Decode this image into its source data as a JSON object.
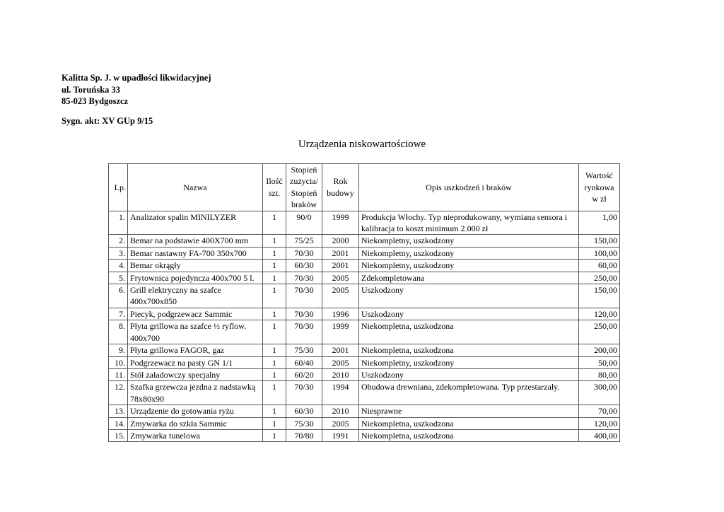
{
  "header": {
    "company": "Kalitta Sp. J. w upadłości likwidacyjnej",
    "street": "ul. Toruńska 33",
    "city": "85-023 Bydgoszcz",
    "case_ref": "Sygn. akt: XV GUp 9/15"
  },
  "title": "Urządzenia niskowartościowe",
  "table": {
    "columns": [
      "Lp.",
      "Nazwa",
      "Ilość szt.",
      "Stopień zużycia/ Stopień braków",
      "Rok budowy",
      "Opis uszkodzeń i braków",
      "Wartość rynkowa w zł"
    ],
    "rows": [
      [
        "1.",
        "Analizator spalin MINILYZER",
        "1",
        "90/0",
        "1999",
        "Produkcja Włochy. Typ nieprodukowany, wymiana sensora i kalibracja to koszt minimum 2.000 zł",
        "1,00"
      ],
      [
        "2.",
        "Bemar na podstawie 400X700 mm",
        "1",
        "75/25",
        "2000",
        "Niekompletny, uszkodzony",
        "150,00"
      ],
      [
        "3.",
        "Bemar nastawny FA-700 350x700",
        "1",
        "70/30",
        "2001",
        "Niekompletny, uszkodzony",
        "100,00"
      ],
      [
        "4.",
        "Bemar okrągły",
        "1",
        "60/30",
        "2001",
        "Niekompletny, uszkodzony",
        "60,00"
      ],
      [
        "5.",
        "Frytownica pojedyncza 400x700 5 l.",
        "1",
        "70/30",
        "2005",
        "Zdekompletowana",
        "250,00"
      ],
      [
        "6.",
        "Grill elektryczny na szafce 400x700x850",
        "1",
        "70/30",
        "2005",
        "Uszkodzony",
        "150,00"
      ],
      [
        "7.",
        "Piecyk, podgrzewacz Sammic",
        "1",
        "70/30",
        "1996",
        "Uszkodzony",
        "120,00"
      ],
      [
        "8.",
        "Płyta grillowa na szafce ½ ryflow. 400x700",
        "1",
        "70/30",
        "1999",
        "Niekompletna, uszkodzona",
        "250,00"
      ],
      [
        "9.",
        "Płyta grillowa FAGOR, gaz",
        "1",
        "75/30",
        "2001",
        "Niekompletna, uszkodzona",
        "200,00"
      ],
      [
        "10.",
        "Podgrzewacz na pasty GN 1/1",
        "1",
        "60/40",
        "2005",
        "Niekompletny, uszkodzony",
        "50,00"
      ],
      [
        "11.",
        "Stół załadowczy specjalny",
        "1",
        "60/20",
        "2010",
        "Uszkodzony",
        "80,00"
      ],
      [
        "12.",
        "Szafka grzewcza jezdna z nadstawką 78x80x90",
        "1",
        "70/30",
        "1994",
        "Obudowa drewniana, zdekompletowana. Typ przestarzały.",
        "300,00"
      ],
      [
        "13.",
        "Urządzenie do gotowania ryżu",
        "1",
        "60/30",
        "2010",
        "Niesprawne",
        "70,00"
      ],
      [
        "14.",
        "Zmywarka do szkła Sammic",
        "1",
        "75/30",
        "2005",
        "Niekompletna, uszkodzona",
        "120,00"
      ],
      [
        "15.",
        "Zmywarka tunelowa",
        "1",
        "70/80",
        "1991",
        "Niekompletna, uszkodzona",
        "400,00"
      ]
    ]
  }
}
